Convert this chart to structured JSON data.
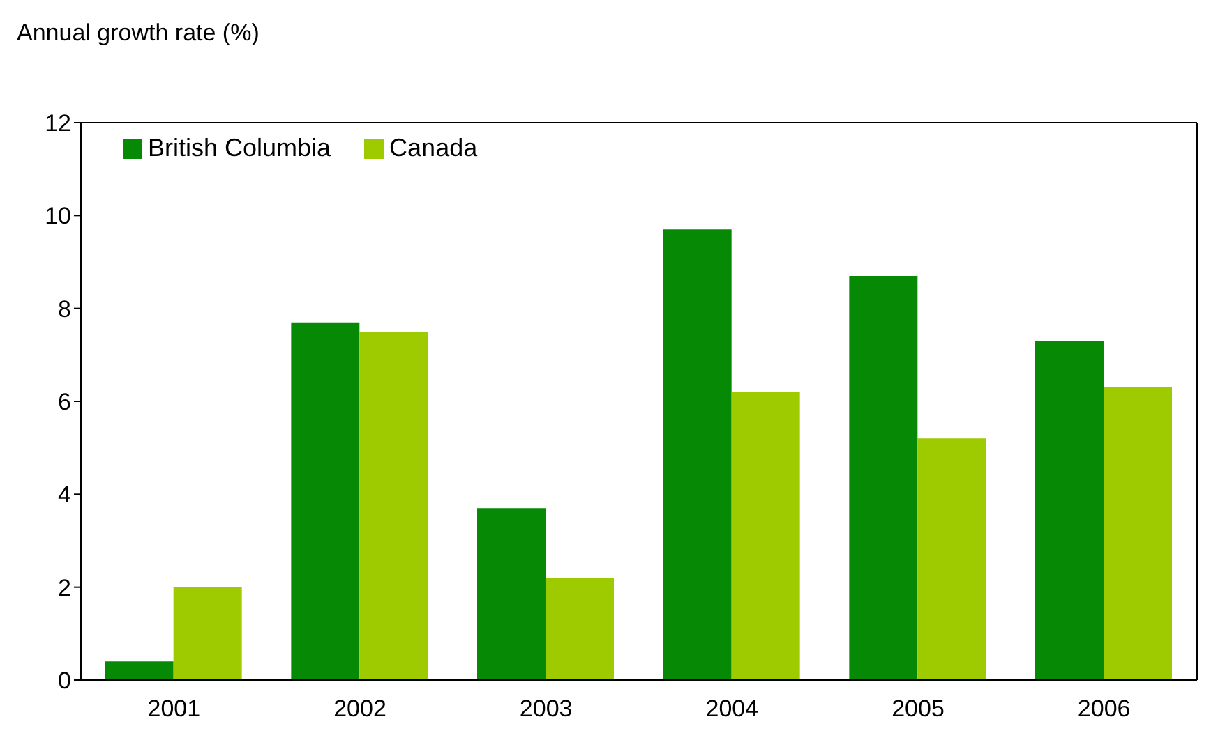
{
  "chart_data": {
    "type": "bar",
    "ylabel": "Annual growth rate (%)",
    "categories": [
      "2001",
      "2002",
      "2003",
      "2004",
      "2005",
      "2006"
    ],
    "series": [
      {
        "name": "British Columbia",
        "color": "#068a06",
        "values": [
          0.4,
          7.7,
          3.7,
          9.7,
          8.7,
          7.3
        ]
      },
      {
        "name": "Canada",
        "color": "#9dcb00",
        "values": [
          2.0,
          7.5,
          2.2,
          6.2,
          5.2,
          6.3
        ]
      }
    ],
    "ylim": [
      0,
      12
    ],
    "yticks": [
      0,
      2,
      4,
      6,
      8,
      10,
      12
    ],
    "grid": false,
    "legend": "top left"
  }
}
